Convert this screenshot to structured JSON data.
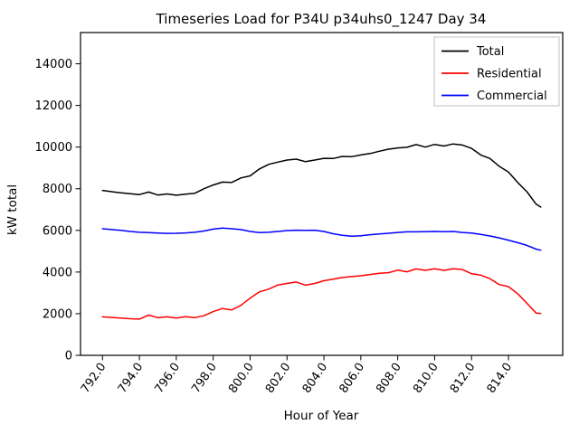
{
  "chart_data": {
    "type": "line",
    "title": "Timeseries Load for P34U p34uhs0_1247  Day 34",
    "xlabel": "Hour of Year",
    "ylabel": "kW total",
    "xlim": [
      790.81,
      816.94
    ],
    "ylim": [
      0,
      15500
    ],
    "grid": false,
    "legend_position": "upper right",
    "x": [
      792.0,
      792.5,
      793.0,
      793.5,
      794.0,
      794.5,
      795.0,
      795.5,
      796.0,
      796.5,
      797.0,
      797.5,
      798.0,
      798.5,
      799.0,
      799.5,
      800.0,
      800.5,
      801.0,
      801.5,
      802.0,
      802.5,
      803.0,
      803.5,
      804.0,
      804.5,
      805.0,
      805.5,
      806.0,
      806.5,
      807.0,
      807.5,
      808.0,
      808.5,
      809.0,
      809.5,
      810.0,
      810.5,
      811.0,
      811.5,
      812.0,
      812.5,
      813.0,
      813.5,
      814.0,
      814.5,
      815.0,
      815.5,
      815.75
    ],
    "series": [
      {
        "name": "Total",
        "color": "#000000",
        "values": [
          7920,
          7860,
          7800,
          7760,
          7720,
          7840,
          7700,
          7750,
          7690,
          7740,
          7780,
          8000,
          8180,
          8320,
          8300,
          8520,
          8620,
          8950,
          9170,
          9280,
          9380,
          9420,
          9300,
          9380,
          9460,
          9450,
          9550,
          9540,
          9620,
          9690,
          9800,
          9900,
          9960,
          9990,
          10120,
          10000,
          10130,
          10050,
          10150,
          10100,
          9940,
          9620,
          9450,
          9080,
          8800,
          8300,
          7860,
          7260,
          7120
        ]
      },
      {
        "name": "Residential",
        "color": "#ff0000",
        "values": [
          1850,
          1820,
          1790,
          1760,
          1740,
          1930,
          1810,
          1850,
          1790,
          1860,
          1810,
          1900,
          2100,
          2250,
          2180,
          2400,
          2750,
          3050,
          3180,
          3380,
          3450,
          3520,
          3370,
          3450,
          3580,
          3660,
          3740,
          3780,
          3820,
          3880,
          3940,
          3970,
          4090,
          4010,
          4150,
          4080,
          4160,
          4080,
          4160,
          4120,
          3920,
          3850,
          3680,
          3400,
          3300,
          2960,
          2500,
          2030,
          2010
        ]
      },
      {
        "name": "Commercial",
        "color": "#0000ff",
        "values": [
          6080,
          6040,
          6000,
          5950,
          5910,
          5890,
          5870,
          5855,
          5860,
          5880,
          5910,
          5970,
          6060,
          6110,
          6080,
          6040,
          5950,
          5890,
          5910,
          5950,
          5990,
          6010,
          6000,
          6010,
          5950,
          5840,
          5760,
          5720,
          5740,
          5790,
          5830,
          5860,
          5900,
          5930,
          5930,
          5940,
          5950,
          5940,
          5950,
          5900,
          5870,
          5810,
          5730,
          5640,
          5530,
          5410,
          5280,
          5100,
          5050
        ]
      }
    ],
    "xticks": [
      792,
      794,
      796,
      798,
      800,
      802,
      804,
      806,
      808,
      810,
      812,
      814
    ],
    "xtick_labels": [
      "792.0",
      "794.0",
      "796.0",
      "798.0",
      "800.0",
      "802.0",
      "804.0",
      "806.0",
      "808.0",
      "810.0",
      "812.0",
      "814.0"
    ],
    "yticks": [
      0,
      2000,
      4000,
      6000,
      8000,
      10000,
      12000,
      14000
    ],
    "ytick_labels": [
      "0",
      "2000",
      "4000",
      "6000",
      "8000",
      "10000",
      "12000",
      "14000"
    ]
  }
}
